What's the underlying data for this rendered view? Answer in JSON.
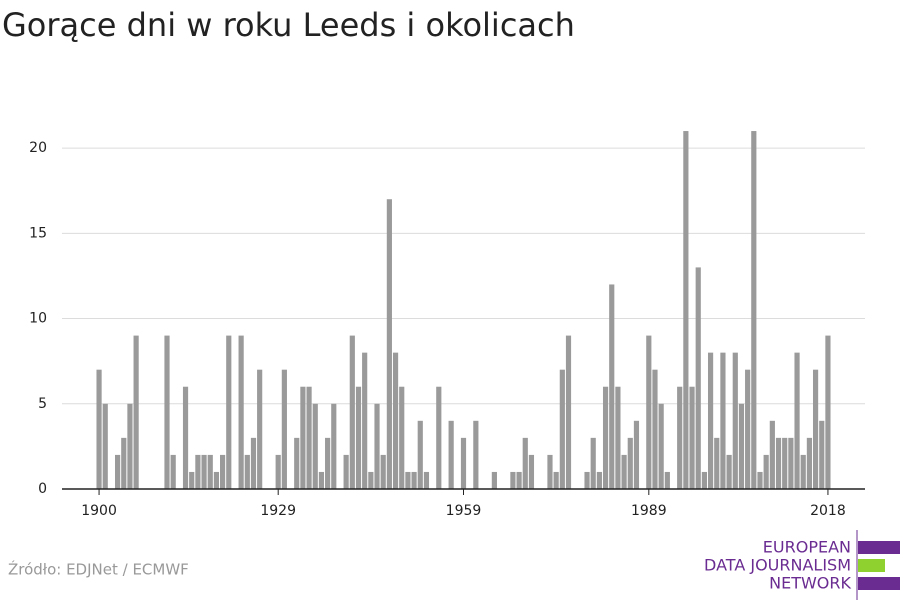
{
  "chart_data": {
    "type": "bar",
    "title": "Gorące dni w roku Leeds i okolicach",
    "source": "Źródło: EDJNet / ECMWF",
    "logo": [
      "EUROPEAN",
      "DATA JOURNALISM",
      "NETWORK"
    ],
    "color": "#9a9a9a",
    "x": [
      1900,
      1901,
      1902,
      1903,
      1904,
      1905,
      1906,
      1907,
      1908,
      1909,
      1910,
      1911,
      1912,
      1913,
      1914,
      1915,
      1916,
      1917,
      1918,
      1919,
      1920,
      1921,
      1922,
      1923,
      1924,
      1925,
      1926,
      1927,
      1928,
      1929,
      1930,
      1931,
      1932,
      1933,
      1934,
      1935,
      1936,
      1937,
      1938,
      1939,
      1940,
      1941,
      1942,
      1943,
      1944,
      1945,
      1946,
      1947,
      1948,
      1949,
      1950,
      1951,
      1952,
      1953,
      1954,
      1955,
      1956,
      1957,
      1958,
      1959,
      1960,
      1961,
      1962,
      1963,
      1964,
      1965,
      1966,
      1967,
      1968,
      1969,
      1970,
      1971,
      1972,
      1973,
      1974,
      1975,
      1976,
      1977,
      1978,
      1979,
      1980,
      1981,
      1982,
      1983,
      1984,
      1985,
      1986,
      1987,
      1988,
      1989,
      1990,
      1991,
      1992,
      1993,
      1994,
      1995,
      1996,
      1997,
      1998,
      1999,
      2000,
      2001,
      2002,
      2003,
      2004,
      2005,
      2006,
      2007,
      2008,
      2009,
      2010,
      2011,
      2012,
      2013,
      2014,
      2015,
      2016,
      2017,
      2018
    ],
    "values": [
      7,
      5,
      0,
      2,
      3,
      5,
      9,
      0,
      0,
      0,
      0,
      9,
      2,
      0,
      6,
      1,
      2,
      2,
      2,
      1,
      2,
      9,
      0,
      9,
      2,
      3,
      7,
      0,
      0,
      2,
      7,
      0,
      3,
      6,
      6,
      5,
      1,
      3,
      5,
      0,
      2,
      9,
      6,
      8,
      1,
      5,
      2,
      17,
      8,
      6,
      1,
      1,
      4,
      1,
      0,
      6,
      0,
      4,
      0,
      3,
      0,
      4,
      0,
      0,
      1,
      0,
      0,
      1,
      1,
      3,
      2,
      0,
      0,
      2,
      1,
      7,
      9,
      0,
      0,
      1,
      3,
      1,
      6,
      12,
      6,
      2,
      3,
      4,
      0,
      9,
      7,
      5,
      1,
      0,
      6,
      21,
      6,
      13,
      1,
      8,
      3,
      8,
      2,
      8,
      5,
      7,
      21,
      1,
      2,
      4,
      3,
      3,
      3,
      8,
      2,
      3,
      7,
      4,
      9
    ],
    "xlim": [
      1894,
      2024
    ],
    "xticks": [
      1900,
      1929,
      1959,
      1989,
      2018
    ],
    "ylim": [
      0,
      22
    ],
    "yticks": [
      0,
      5,
      10,
      15,
      20
    ],
    "grid": true
  }
}
